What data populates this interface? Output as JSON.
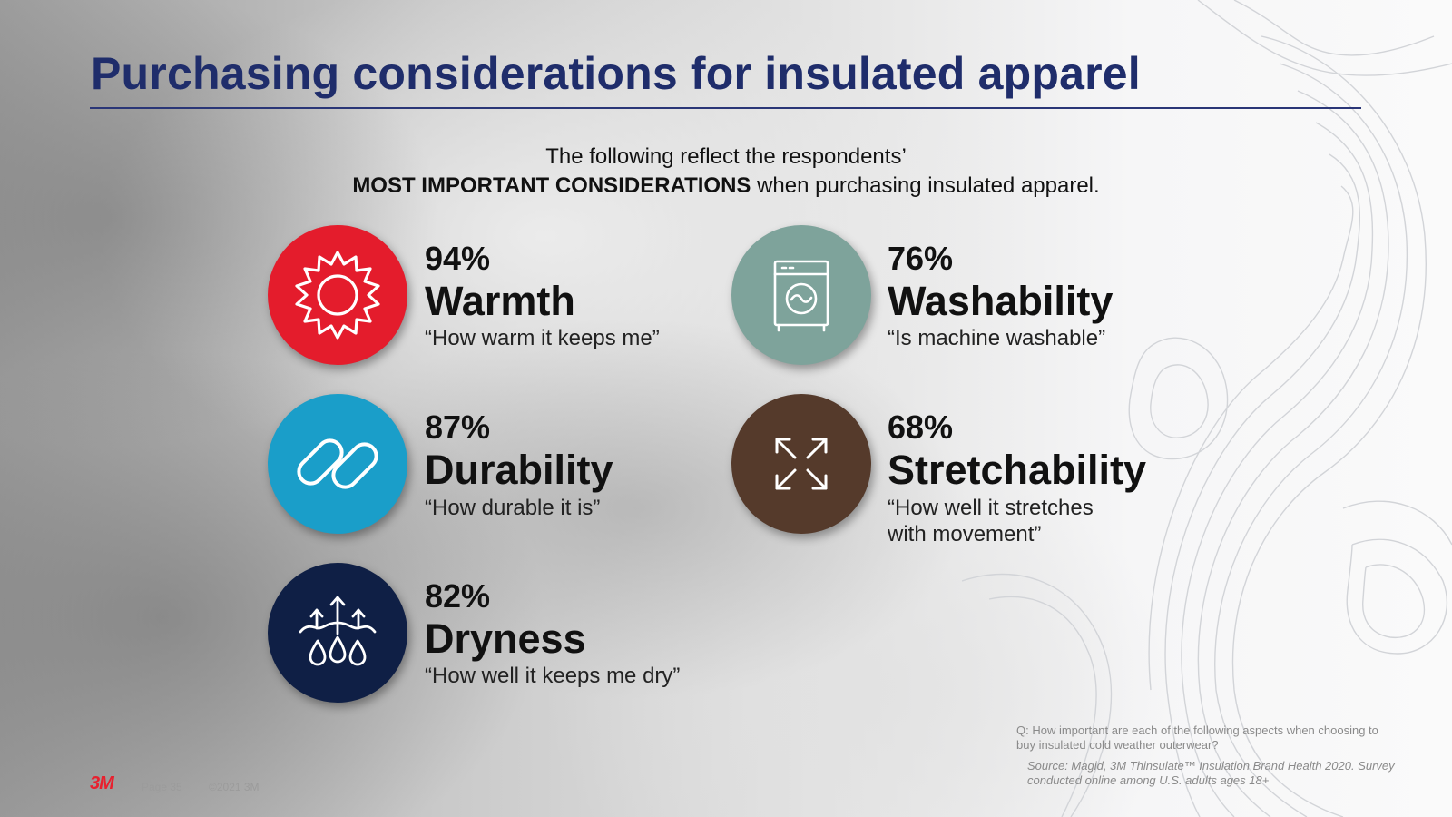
{
  "title": "Purchasing considerations for insulated apparel",
  "intro": {
    "line1": "The following reflect the respondents’",
    "line2_strong": "MOST IMPORTANT CONSIDERATIONS",
    "line2_rest": " when purchasing insulated apparel."
  },
  "items": [
    {
      "percent": "94%",
      "label": "Warmth",
      "quote": "“How warm it keeps me”",
      "icon": "sun-icon",
      "color": "#e41c2c"
    },
    {
      "percent": "87%",
      "label": "Durability",
      "quote": "“How durable it is”",
      "icon": "chain-link-icon",
      "color": "#1a9ec9"
    },
    {
      "percent": "82%",
      "label": "Dryness",
      "quote": "“How well it keeps me dry”",
      "icon": "moisture-wicking-icon",
      "color": "#0f1f45"
    },
    {
      "percent": "76%",
      "label": "Washability",
      "quote": "“Is machine washable”",
      "icon": "washing-machine-icon",
      "color": "#7ea39b"
    },
    {
      "percent": "68%",
      "label": "Stretchability",
      "quote": "“How well it stretches with movement”",
      "icon": "expand-arrows-icon",
      "color": "#553a2b"
    }
  ],
  "footnote": "Q: How important are each of the following aspects when choosing to buy insulated cold weather outerwear?",
  "source": "Source: Magid, 3M Thinsulate™ Insulation Brand Health 2020. Survey conducted online among U.S. adults ages 18+",
  "footer": {
    "logo": "3M",
    "page": "Page 35",
    "copyright": "©2021 3M"
  }
}
